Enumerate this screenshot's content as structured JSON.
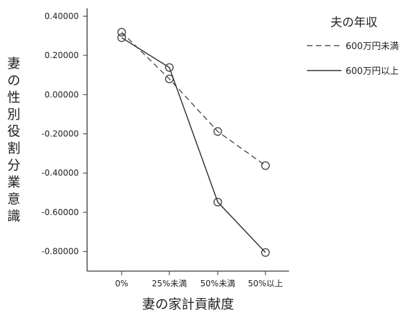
{
  "chart_data": {
    "type": "line",
    "title": "",
    "xlabel": "妻の家計貢献度",
    "ylabel": "妻の性別役割分業意識",
    "categories": [
      "0%",
      "25%未満",
      "50%未満",
      "50%以上"
    ],
    "ylim": [
      -0.9,
      0.44
    ],
    "yticks": [
      "0.40000",
      "0.20000",
      "0.00000",
      "-0.20000",
      "-0.40000",
      "-0.60000",
      "-0.80000"
    ],
    "ytick_values": [
      0.4,
      0.2,
      0.0,
      -0.2,
      -0.4,
      -0.6,
      -0.8
    ],
    "legend": {
      "title": "夫の年収",
      "placement": "right"
    },
    "series": [
      {
        "name": "600万円未満",
        "style": "dashed",
        "color": "#555555",
        "values": [
          0.318,
          0.08,
          -0.188,
          -0.362
        ]
      },
      {
        "name": "600万円以上",
        "style": "solid",
        "color": "#333333",
        "values": [
          0.29,
          0.138,
          -0.548,
          -0.805
        ]
      }
    ],
    "grid": false
  }
}
